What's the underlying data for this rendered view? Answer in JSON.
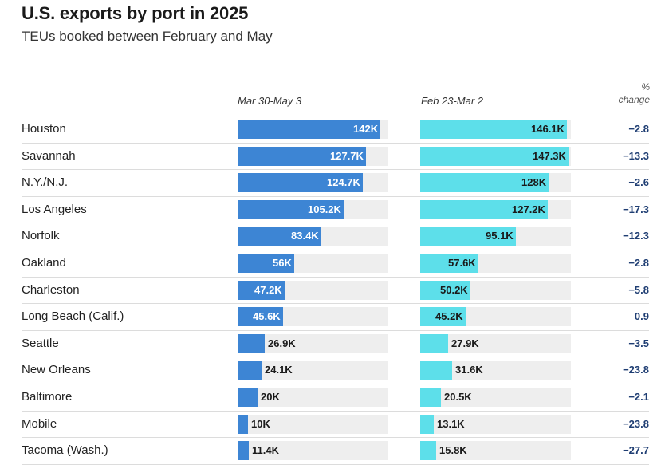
{
  "chart_data": {
    "type": "table",
    "title": "U.S. exports by port in 2025",
    "subtitle": "TEUs booked between February and May",
    "columns": {
      "period_a": "Mar 30-May 3",
      "period_b": "Feb 23-Mar 2",
      "change_line1": "%",
      "change_line2": "change"
    },
    "xlim": [
      0,
      150000
    ],
    "rows": [
      {
        "port": "Houston",
        "a": 142000,
        "a_label": "142K",
        "b": 146100,
        "b_label": "146.1K",
        "change": "−2.8"
      },
      {
        "port": "Savannah",
        "a": 127700,
        "a_label": "127.7K",
        "b": 147300,
        "b_label": "147.3K",
        "change": "−13.3"
      },
      {
        "port": "N.Y./N.J.",
        "a": 124700,
        "a_label": "124.7K",
        "b": 128000,
        "b_label": "128K",
        "change": "−2.6"
      },
      {
        "port": "Los Angeles",
        "a": 105200,
        "a_label": "105.2K",
        "b": 127200,
        "b_label": "127.2K",
        "change": "−17.3"
      },
      {
        "port": "Norfolk",
        "a": 83400,
        "a_label": "83.4K",
        "b": 95100,
        "b_label": "95.1K",
        "change": "−12.3"
      },
      {
        "port": "Oakland",
        "a": 56000,
        "a_label": "56K",
        "b": 57600,
        "b_label": "57.6K",
        "change": "−2.8"
      },
      {
        "port": "Charleston",
        "a": 47200,
        "a_label": "47.2K",
        "b": 50200,
        "b_label": "50.2K",
        "change": "−5.8"
      },
      {
        "port": "Long Beach (Calif.)",
        "a": 45600,
        "a_label": "45.6K",
        "b": 45200,
        "b_label": "45.2K",
        "change": "0.9"
      },
      {
        "port": "Seattle",
        "a": 26900,
        "a_label": "26.9K",
        "b": 27900,
        "b_label": "27.9K",
        "change": "−3.5"
      },
      {
        "port": "New Orleans",
        "a": 24100,
        "a_label": "24.1K",
        "b": 31600,
        "b_label": "31.6K",
        "change": "−23.8"
      },
      {
        "port": "Baltimore",
        "a": 20000,
        "a_label": "20K",
        "b": 20500,
        "b_label": "20.5K",
        "change": "−2.1"
      },
      {
        "port": "Mobile",
        "a": 10000,
        "a_label": "10K",
        "b": 13100,
        "b_label": "13.1K",
        "change": "−23.8"
      },
      {
        "port": "Tacoma (Wash.)",
        "a": 11400,
        "a_label": "11.4K",
        "b": 15800,
        "b_label": "15.8K",
        "change": "−27.7"
      }
    ],
    "colors": {
      "period_a": "#3d85d4",
      "period_b": "#5ddfea",
      "track": "#eeeeee",
      "change": "#1f3e73"
    }
  }
}
